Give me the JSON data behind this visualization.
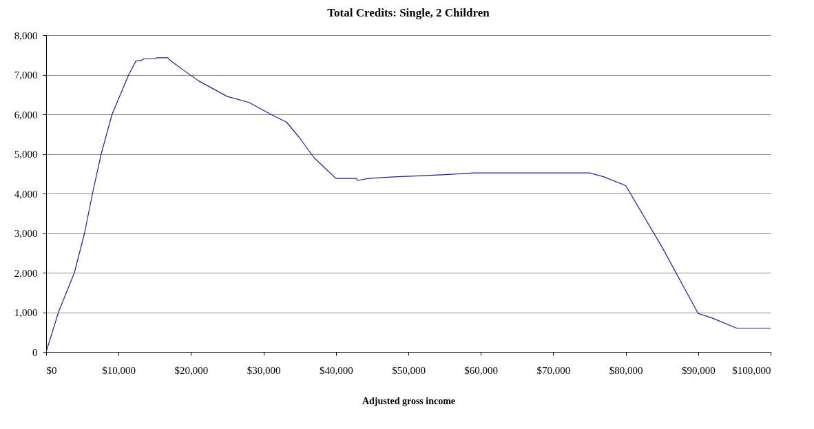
{
  "chart_data": {
    "type": "line",
    "title": "Total Credits: Single, 2 Children",
    "xlabel": "Adjusted gross income",
    "x": [
      0,
      1700,
      3900,
      5300,
      6400,
      7600,
      9100,
      11400,
      12400,
      13000,
      13500,
      15000,
      15300,
      16800,
      17000,
      18700,
      21000,
      25000,
      28000,
      29000,
      31000,
      33200,
      35000,
      37000,
      40000,
      42800,
      43000,
      44500,
      48000,
      52000,
      55500,
      59000,
      75000,
      77000,
      80000,
      85000,
      90000,
      92000,
      95300,
      100000
    ],
    "series": [
      {
        "color": "#1f1f8f",
        "values": [
          0,
          1000,
          2000,
          3000,
          4000,
          5000,
          6000,
          7000,
          7350,
          7350,
          7400,
          7400,
          7430,
          7430,
          7380,
          7150,
          6850,
          6450,
          6300,
          6200,
          6000,
          5800,
          5400,
          4900,
          4380,
          4380,
          4330,
          4380,
          4420,
          4450,
          4480,
          4520,
          4520,
          4420,
          4200,
          2650,
          970,
          850,
          600,
          600
        ]
      }
    ],
    "xlim": [
      0,
      100000
    ],
    "xticks": [
      {
        "value": 0,
        "label": "$0"
      },
      {
        "value": 10000,
        "label": "$10,000"
      },
      {
        "value": 20000,
        "label": "$20,000"
      },
      {
        "value": 30000,
        "label": "$30,000"
      },
      {
        "value": 40000,
        "label": "$40,000"
      },
      {
        "value": 50000,
        "label": "$50,000"
      },
      {
        "value": 60000,
        "label": "$60,000"
      },
      {
        "value": 70000,
        "label": "$70,000"
      },
      {
        "value": 80000,
        "label": "$80,000"
      },
      {
        "value": 90000,
        "label": "$90,000"
      },
      {
        "value": 100000,
        "label": "$100,000"
      }
    ],
    "ylim": [
      0,
      8000
    ],
    "yticks": [
      {
        "value": 0,
        "label": "0"
      },
      {
        "value": 1000,
        "label": "1,000"
      },
      {
        "value": 2000,
        "label": "2,000"
      },
      {
        "value": 3000,
        "label": "3,000"
      },
      {
        "value": 4000,
        "label": "4,000"
      },
      {
        "value": 5000,
        "label": "5,000"
      },
      {
        "value": 6000,
        "label": "6,000"
      },
      {
        "value": 7000,
        "label": "7,000"
      },
      {
        "value": 8000,
        "label": "8,000"
      }
    ],
    "grid": "y",
    "legend": false
  }
}
